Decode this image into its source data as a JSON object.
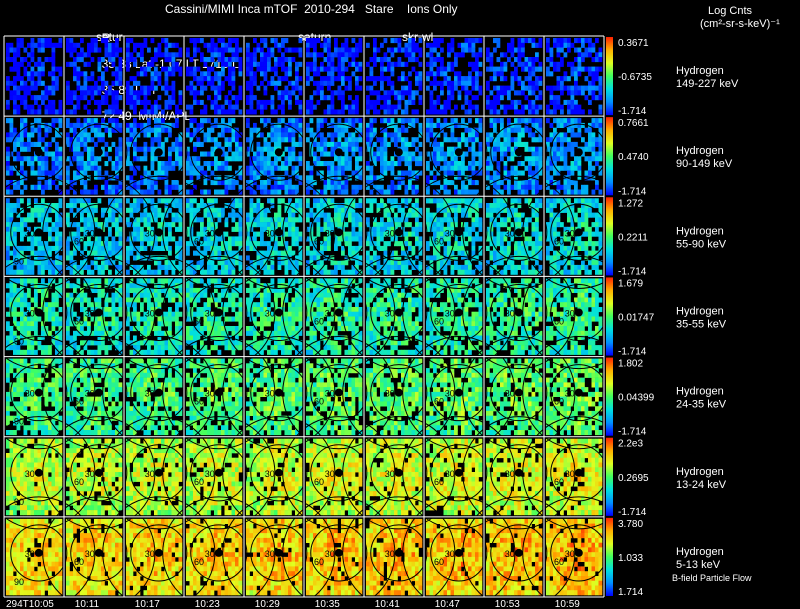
{
  "header": {
    "title": "Cassini/MIMI Inca mTOF  2010-294   Stare    Ions Only",
    "row2_R": "R",
    "row2_vals": "35.88 Lat -1.07 LT 1715 L",
    "row2_lon": "35.89 Lon",
    "row2_right": "72.49  MIMI/APL",
    "panel_label_satur": "satur",
    "panel_label_saturn": "saturn",
    "panel_label_skr": "skr-wl",
    "units_line1": "Log Cnts",
    "units_line2": "(cm²-sr-s-keV)⁻¹"
  },
  "footer": {
    "bfield_label": "B-field Particle Flow"
  },
  "colors": {
    "background": "#000000",
    "colorbar": [
      "#0000ff",
      "#0090ff",
      "#00e0e0",
      "#40ff60",
      "#e0ff20",
      "#ffb000",
      "#ff2000"
    ]
  },
  "chart_data": {
    "type": "heatmap",
    "title": "Cassini/MIMI Inca mTOF  2010-294   Stare    Ions Only",
    "x": [
      "294T10:05",
      "10:11",
      "10:17",
      "10:23",
      "10:29",
      "10:35",
      "10:41",
      "10:47",
      "10:53",
      "10:59"
    ],
    "grid": true,
    "rows": [
      {
        "species": "Hydrogen",
        "energy": "149-227 keV",
        "cmax": "0.3671",
        "cmid": "-0.6735",
        "cmin": "-1.714",
        "level": 0.05
      },
      {
        "species": "Hydrogen",
        "energy": "90-149 keV",
        "cmax": "0.7661",
        "cmid": "0.4740",
        "cmin": "-1.714",
        "level": 0.2
      },
      {
        "species": "Hydrogen",
        "energy": "55-90 keV",
        "cmax": "1.272",
        "cmid": "0.2211",
        "cmin": "-1.714",
        "level": 0.34
      },
      {
        "species": "Hydrogen",
        "energy": "35-55 keV",
        "cmax": "1.679",
        "cmid": "0.01747",
        "cmin": "-1.714",
        "level": 0.44
      },
      {
        "species": "Hydrogen",
        "energy": "24-35 keV",
        "cmax": "1.802",
        "cmid": "0.04399",
        "cmin": "-1.714",
        "level": 0.52
      },
      {
        "species": "Hydrogen",
        "energy": "13-24 keV",
        "cmax": "2.2e3",
        "cmid": "0.2695",
        "cmin": "-1.714",
        "level": 0.68
      },
      {
        "species": "Hydrogen",
        "energy": "5-13 keV",
        "cmax": "3.780",
        "cmid": "1.033",
        "cmin": "1.714",
        "level": 0.8
      }
    ],
    "contour_labels": [
      "30",
      "60",
      "90"
    ]
  }
}
